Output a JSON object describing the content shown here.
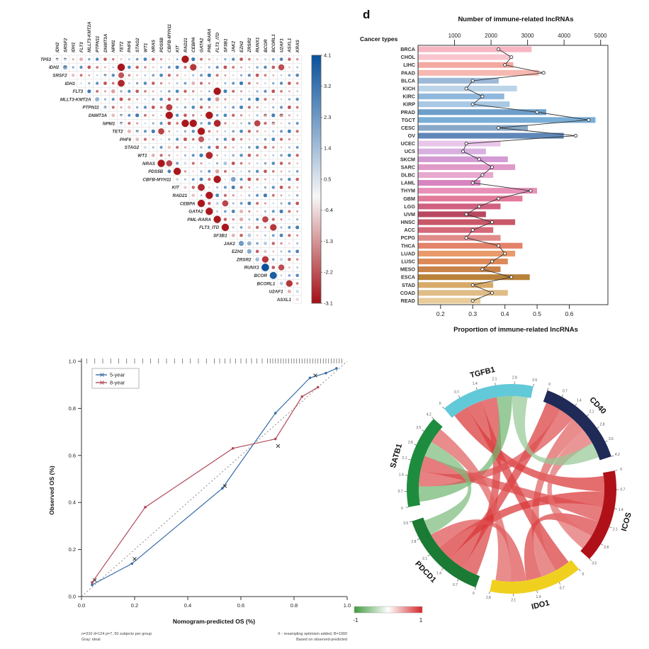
{
  "chart_data": [
    {
      "type": "heatmap",
      "name": "gene-mutation-correlation-matrix",
      "rows": [
        "TP53",
        "IDH2",
        "SRSF2",
        "IDH1",
        "FLT3",
        "MLLT3-KMT2A",
        "PTPN11",
        "DNMT3A",
        "NPM1",
        "TET2",
        "PHF6",
        "STAG2",
        "WT1",
        "NRAS",
        "PDS5B",
        "CBFB-MYH11",
        "KIT",
        "RAD21",
        "CEBPA",
        "GATA2",
        "PML-RARA",
        "FLT3_ITD",
        "SF3B1",
        "JAK2",
        "EZH2",
        "ZRSR2",
        "RUNX1",
        "BCOR",
        "BCORL1",
        "U2AF1",
        "ASXL1"
      ],
      "cols": [
        "IDH2",
        "SRSF2",
        "IDH1",
        "FLT3",
        "MLLT3-KMT2A",
        "PTPN11",
        "DNMT3A",
        "NPM1",
        "TET2",
        "PHF6",
        "STAG2",
        "WT1",
        "NRAS",
        "PDS5B",
        "CBFB-MYH11",
        "KIT",
        "RAD21",
        "CEBPA",
        "GATA2",
        "PML-RARA",
        "FLT3_ITD",
        "SF3B1",
        "JAK2",
        "EZH2",
        "ZRSR2",
        "RUNX1",
        "BCOR",
        "BCORL1",
        "U2AF1",
        "ASXL1",
        "KRAS"
      ],
      "colorbar_ticks": [
        4.1,
        3.2,
        2.3,
        1.4,
        0.5,
        -0.4,
        -1.3,
        -2.2,
        -3.1
      ],
      "color_positive": "#08519c",
      "color_negative": "#a50f15",
      "cells": [
        [
          0,
          0,
          0.9,
          "**"
        ],
        [
          0,
          1,
          0.8,
          "**"
        ],
        [
          0,
          3,
          -1.0,
          ""
        ],
        [
          0,
          16,
          -3.0,
          ""
        ],
        [
          1,
          1,
          2.0,
          "**"
        ],
        [
          1,
          8,
          -3.0,
          ""
        ],
        [
          1,
          17,
          -2.6,
          ""
        ],
        [
          1,
          28,
          -2.3,
          ""
        ],
        [
          2,
          2,
          -0.8,
          ""
        ],
        [
          2,
          6,
          1.0,
          "**"
        ],
        [
          2,
          8,
          -2.2,
          ""
        ],
        [
          3,
          8,
          -2.8,
          ""
        ],
        [
          3,
          17,
          -1.0,
          ""
        ],
        [
          4,
          7,
          -1.2,
          ""
        ],
        [
          4,
          20,
          -3.0,
          ""
        ],
        [
          5,
          5,
          1.8,
          ""
        ],
        [
          5,
          20,
          -1.3,
          ""
        ],
        [
          6,
          6,
          1.2,
          "*"
        ],
        [
          6,
          9,
          -0.8,
          ""
        ],
        [
          6,
          14,
          -2.5,
          ""
        ],
        [
          7,
          7,
          -0.9,
          ""
        ],
        [
          7,
          8,
          0.9,
          "**"
        ],
        [
          7,
          14,
          -3.0,
          ""
        ],
        [
          7,
          19,
          -3.0,
          ""
        ],
        [
          7,
          26,
          -1.0,
          "**"
        ],
        [
          7,
          28,
          -1.2,
          "**"
        ],
        [
          8,
          8,
          1.0,
          "**"
        ],
        [
          8,
          16,
          -3.0,
          ""
        ],
        [
          8,
          17,
          -3.0,
          ""
        ],
        [
          8,
          20,
          -2.8,
          ""
        ],
        [
          8,
          25,
          -2.4,
          ""
        ],
        [
          8,
          27,
          -1.0,
          "**"
        ],
        [
          9,
          9,
          -1.0,
          ""
        ],
        [
          9,
          10,
          1.1,
          "**"
        ],
        [
          9,
          13,
          -2.4,
          ""
        ],
        [
          9,
          18,
          -3.0,
          ""
        ],
        [
          10,
          10,
          -0.9,
          ""
        ],
        [
          10,
          18,
          -2.2,
          ""
        ],
        [
          11,
          11,
          0.8,
          ""
        ],
        [
          11,
          14,
          -0.8,
          ""
        ],
        [
          12,
          12,
          -1.0,
          ""
        ],
        [
          12,
          19,
          -2.8,
          ""
        ],
        [
          13,
          13,
          -3.0,
          ""
        ],
        [
          13,
          14,
          -2.4,
          ""
        ],
        [
          13,
          16,
          0.8,
          ""
        ],
        [
          13,
          21,
          1.4,
          ""
        ],
        [
          14,
          15,
          -3.0,
          ""
        ],
        [
          14,
          20,
          -1.2,
          ""
        ],
        [
          15,
          15,
          0.9,
          ""
        ],
        [
          15,
          20,
          -3.0,
          ""
        ],
        [
          15,
          22,
          2.2,
          ""
        ],
        [
          16,
          16,
          -0.7,
          ""
        ],
        [
          16,
          18,
          -2.8,
          ""
        ],
        [
          17,
          17,
          -0.8,
          ""
        ],
        [
          17,
          19,
          -3.0,
          ""
        ],
        [
          18,
          18,
          -3.0,
          ""
        ],
        [
          18,
          20,
          1.0,
          ""
        ],
        [
          18,
          21,
          -2.4,
          ""
        ],
        [
          19,
          19,
          -3.0,
          ""
        ],
        [
          19,
          23,
          -1.0,
          ""
        ],
        [
          20,
          20,
          -3.0,
          ""
        ],
        [
          20,
          23,
          -1.1,
          ""
        ],
        [
          20,
          26,
          -2.4,
          ""
        ],
        [
          21,
          21,
          -3.0,
          ""
        ],
        [
          21,
          24,
          -0.8,
          ""
        ],
        [
          21,
          27,
          -2.6,
          ""
        ],
        [
          22,
          22,
          -1.0,
          ""
        ],
        [
          22,
          24,
          1.3,
          ""
        ],
        [
          23,
          23,
          2.4,
          ""
        ],
        [
          23,
          24,
          1.8,
          ""
        ],
        [
          23,
          26,
          1.2,
          ""
        ],
        [
          24,
          24,
          2.0,
          ""
        ],
        [
          24,
          26,
          -0.8,
          ""
        ],
        [
          25,
          25,
          1.6,
          ""
        ],
        [
          25,
          26,
          -2.6,
          ""
        ],
        [
          25,
          28,
          1.0,
          ""
        ],
        [
          26,
          26,
          4.1,
          ""
        ],
        [
          26,
          28,
          -2.3,
          ""
        ],
        [
          27,
          27,
          3.8,
          ""
        ],
        [
          28,
          28,
          1.2,
          ""
        ],
        [
          28,
          29,
          -2.6,
          ""
        ],
        [
          29,
          29,
          -1.0,
          ""
        ],
        [
          29,
          30,
          0.9,
          ""
        ],
        [
          30,
          30,
          -0.6,
          ""
        ]
      ]
    },
    {
      "type": "bar",
      "name": "immune-lncrna-by-cancer-type",
      "panel_label": "d",
      "top_axis_title": "Number of immune-related lncRNAs",
      "left_axis_title": "Cancer types",
      "bottom_axis_title": "Proportion of immune-related lncRNAs",
      "top_ticks": [
        1000,
        2000,
        3000,
        4000,
        5000
      ],
      "bottom_ticks": [
        0.2,
        0.3,
        0.4,
        0.5,
        0.6
      ],
      "count_max": 5200,
      "prop_range": [
        0.13,
        0.72
      ],
      "categories": [
        "BRCA",
        "CHOL",
        "LIHC",
        "PAAD",
        "BLCA",
        "KICH",
        "KIRC",
        "KIRP",
        "PRAD",
        "TGCT",
        "CESC",
        "OV",
        "UCEC",
        "UCS",
        "SKCM",
        "SARC",
        "DLBC",
        "LAML",
        "THYM",
        "GBM",
        "LGG",
        "UVM",
        "HNSC",
        "ACC",
        "PCPG",
        "THCA",
        "LUAD",
        "LUSC",
        "MESO",
        "ESCA",
        "STAD",
        "COAD",
        "READ"
      ],
      "counts": [
        3100,
        2500,
        2600,
        3300,
        2200,
        2700,
        2350,
        2500,
        3500,
        4850,
        3000,
        3980,
        2250,
        1850,
        2450,
        2650,
        2050,
        1700,
        3250,
        2850,
        2250,
        1850,
        2650,
        2050,
        2250,
        2850,
        2650,
        2450,
        2250,
        3050,
        2050,
        2450,
        1700
      ],
      "proportions": [
        0.38,
        0.42,
        0.4,
        0.52,
        0.3,
        0.28,
        0.33,
        0.3,
        0.5,
        0.66,
        0.38,
        0.62,
        0.28,
        0.27,
        0.32,
        0.36,
        0.33,
        0.3,
        0.48,
        0.38,
        0.32,
        0.28,
        0.36,
        0.3,
        0.28,
        0.38,
        0.4,
        0.36,
        0.33,
        0.42,
        0.3,
        0.36,
        0.3
      ],
      "bar_colors": [
        "#f7b6c2",
        "#f9c6cf",
        "#f4a9a0",
        "#f6b8b0",
        "#9db9d8",
        "#bcd4e8",
        "#8fb8dc",
        "#a8c8e4",
        "#6d9ec9",
        "#7aaed6",
        "#88a8c8",
        "#5f87b8",
        "#e8c6ea",
        "#d8b0e0",
        "#d49ad4",
        "#e09ac8",
        "#e8a8d0",
        "#d884c0",
        "#e890b8",
        "#e47a9a",
        "#d06080",
        "#b84860",
        "#c85868",
        "#d4697a",
        "#e08a8a",
        "#e4826a",
        "#e89a6a",
        "#dc8a5a",
        "#c8824a",
        "#b8823a",
        "#d8aa6a",
        "#e0bc88",
        "#e8cc9a"
      ]
    },
    {
      "type": "line",
      "name": "nomogram-calibration-plot",
      "xlabel": "Nomogram-predicted OS (%)",
      "ylabel": "Observed OS (%)",
      "xlim": [
        0,
        1
      ],
      "ylim": [
        0,
        1
      ],
      "ticks": [
        0.0,
        0.2,
        0.4,
        0.6,
        0.8,
        1.0
      ],
      "series": [
        {
          "name": "5-year",
          "color": "#3a6ea8",
          "points": [
            [
              0.04,
              0.05
            ],
            [
              0.19,
              0.14
            ],
            [
              0.53,
              0.46
            ],
            [
              0.73,
              0.78
            ],
            [
              0.86,
              0.93
            ],
            [
              0.92,
              0.95
            ],
            [
              0.96,
              0.97
            ]
          ],
          "x_marks": [
            [
              0.05,
              0.07
            ],
            [
              0.2,
              0.16
            ],
            [
              0.54,
              0.47
            ],
            [
              0.74,
              0.64
            ],
            [
              0.88,
              0.94
            ]
          ]
        },
        {
          "name": "8-year",
          "color": "#b04a5a",
          "points": [
            [
              0.04,
              0.06
            ],
            [
              0.24,
              0.38
            ],
            [
              0.57,
              0.63
            ],
            [
              0.73,
              0.67
            ],
            [
              0.83,
              0.85
            ],
            [
              0.89,
              0.89
            ]
          ],
          "x_marks": []
        }
      ],
      "rug_positions": [
        0.02,
        0.05,
        0.08,
        0.11,
        0.14,
        0.17,
        0.2,
        0.23,
        0.26,
        0.29,
        0.32,
        0.35,
        0.38,
        0.41,
        0.44,
        0.47,
        0.5,
        0.52,
        0.54,
        0.56,
        0.58,
        0.6,
        0.62,
        0.64,
        0.66,
        0.68,
        0.7,
        0.71,
        0.72,
        0.73,
        0.74,
        0.75,
        0.76,
        0.77,
        0.78,
        0.79,
        0.8,
        0.81,
        0.82,
        0.83,
        0.84,
        0.85,
        0.86,
        0.87,
        0.88,
        0.89,
        0.9,
        0.91,
        0.92,
        0.93,
        0.94,
        0.95,
        0.96,
        0.97,
        0.98
      ],
      "footnotes": {
        "left1": "n=310 d=124 p=7, 50 subjects per group",
        "left2": "Gray: ideal",
        "right1": "X - resampling optimism added, B=1000",
        "right2": "Based on observed-predicted"
      }
    },
    {
      "type": "chord",
      "name": "immune-gene-chord-diagram",
      "genes": [
        {
          "name": "CD40",
          "color": "#1f2a56",
          "ticks": [
            0,
            0.7,
            1.4,
            2.1,
            2.8,
            3.5,
            4.2
          ]
        },
        {
          "name": "ICOS",
          "color": "#b01118",
          "ticks": [
            0,
            0.7,
            1.4,
            2.1,
            2.8,
            3.5
          ]
        },
        {
          "name": "IDO1",
          "color": "#f0d01e",
          "ticks": [
            0,
            0.7,
            1.4,
            2.1,
            2.8
          ]
        },
        {
          "name": "PDCD1",
          "color": "#1b7a34",
          "ticks": [
            0,
            0.7,
            1.4,
            2.1,
            2.8,
            3.5
          ]
        },
        {
          "name": "SATB1",
          "color": "#1e8c3e",
          "ticks": [
            0,
            0.7,
            1.4,
            2.1,
            2.8,
            3.5,
            4.2
          ]
        },
        {
          "name": "TGFB1",
          "color": "#62c9d8",
          "ticks": [
            0,
            0.7,
            1.4,
            2.1,
            2.8,
            3.5
          ]
        }
      ],
      "ribbons": [
        {
          "from": "TGFB1",
          "to": "ICOS",
          "value": 0.9
        },
        {
          "from": "TGFB1",
          "to": "IDO1",
          "value": 0.85
        },
        {
          "from": "TGFB1",
          "to": "PDCD1",
          "value": 0.8
        },
        {
          "from": "TGFB1",
          "to": "SATB1",
          "value": -0.6
        },
        {
          "from": "CD40",
          "to": "PDCD1",
          "value": 0.85
        },
        {
          "from": "CD40",
          "to": "SATB1",
          "value": 0.7
        },
        {
          "from": "CD40",
          "to": "IDO1",
          "value": 0.6
        },
        {
          "from": "ICOS",
          "to": "PDCD1",
          "value": 0.9
        },
        {
          "from": "ICOS",
          "to": "SATB1",
          "value": 0.75
        },
        {
          "from": "ICOS",
          "to": "IDO1",
          "value": 0.8
        },
        {
          "from": "IDO1",
          "to": "PDCD1",
          "value": 0.7
        },
        {
          "from": "SATB1",
          "to": "PDCD1",
          "value": -0.5
        },
        {
          "from": "SATB1",
          "to": "IDO1",
          "value": 0.6
        },
        {
          "from": "CD40",
          "to": "ICOS",
          "value": 0.5
        },
        {
          "from": "TGFB1",
          "to": "CD40",
          "value": -0.3
        }
      ],
      "legend": {
        "min": -1,
        "max": 1,
        "min_color": "#3f9b3f",
        "mid_color": "#ffffff",
        "max_color": "#d62728"
      }
    }
  ]
}
